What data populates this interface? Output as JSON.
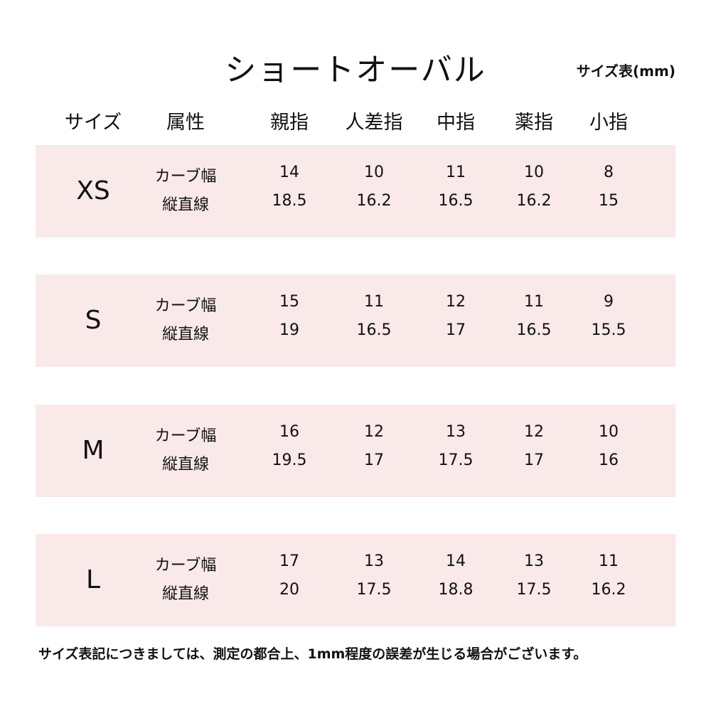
{
  "title": "ショートオーバル",
  "unit_label": "サイズ表(mm)",
  "headers": [
    "サイズ",
    "属性",
    "親指",
    "人差指",
    "中指",
    "薬指",
    "小指"
  ],
  "accent_color": "#f9e9e9",
  "rows": [
    {
      "size": "XS",
      "attrs": [
        "カーブ幅",
        "縦直線"
      ],
      "curve": [
        "14",
        "10",
        "11",
        "10",
        "8"
      ],
      "length": [
        "18.5",
        "16.2",
        "16.5",
        "16.2",
        "15"
      ]
    },
    {
      "size": "S",
      "attrs": [
        "カーブ幅",
        "縦直線"
      ],
      "curve": [
        "15",
        "11",
        "12",
        "11",
        "9"
      ],
      "length": [
        "19",
        "16.5",
        "17",
        "16.5",
        "15.5"
      ]
    },
    {
      "size": "M",
      "attrs": [
        "カーブ幅",
        "縦直線"
      ],
      "curve": [
        "16",
        "12",
        "13",
        "12",
        "10"
      ],
      "length": [
        "19.5",
        "17",
        "17.5",
        "17",
        "16"
      ]
    },
    {
      "size": "L",
      "attrs": [
        "カーブ幅",
        "縦直線"
      ],
      "curve": [
        "17",
        "13",
        "14",
        "13",
        "11"
      ],
      "length": [
        "20",
        "17.5",
        "18.8",
        "17.5",
        "16.2"
      ]
    }
  ],
  "note": "サイズ表記につきましては、測定の都合上、1mm程度の誤差が生じる場合がございます。"
}
